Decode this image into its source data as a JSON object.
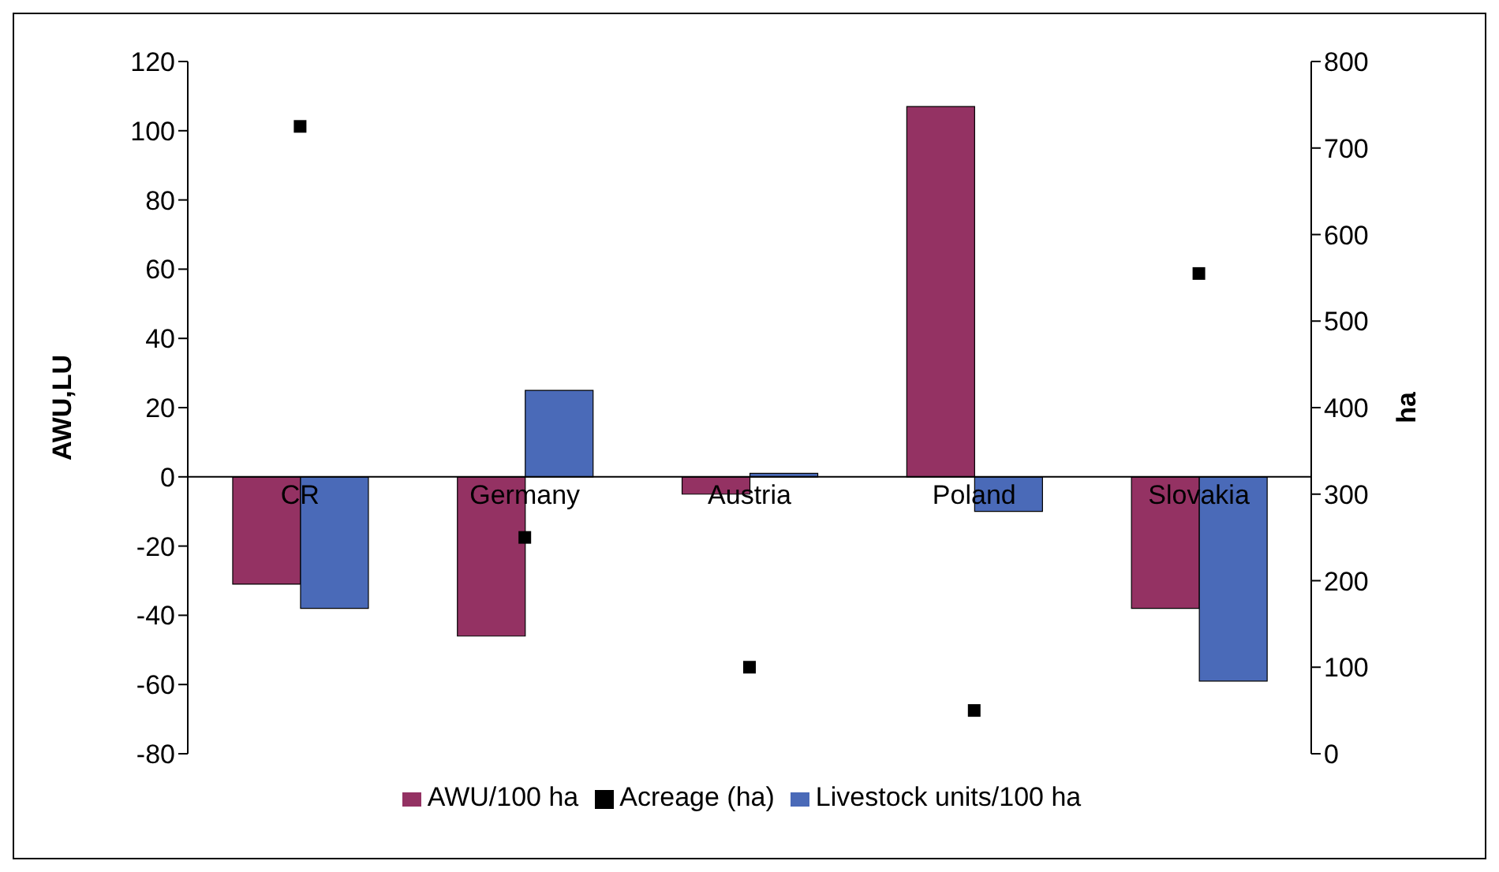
{
  "chart_data": {
    "type": "bar",
    "categories": [
      "CR",
      "Germany",
      "Austria",
      "Poland",
      "Slovakia"
    ],
    "series": [
      {
        "name": "AWU/100 ha",
        "color": "#943263",
        "values": [
          -31,
          -46,
          -5,
          107,
          -38
        ]
      },
      {
        "name": "Livestock units/100 ha",
        "color": "#4a6ab8",
        "values": [
          -38,
          25,
          1,
          -10,
          -59
        ]
      },
      {
        "name": "Acreage (ha)",
        "type": "scatter",
        "axis": "y2",
        "color": "#000000",
        "values": [
          725,
          250,
          100,
          50,
          555
        ]
      }
    ],
    "ylabel": "AWU,LU",
    "y2label": "ha",
    "ylim": [
      -80,
      120
    ],
    "yticks": [
      -80,
      -60,
      -40,
      -20,
      0,
      20,
      40,
      60,
      80,
      100,
      120
    ],
    "y2lim": [
      0,
      800
    ],
    "y2ticks": [
      0,
      100,
      200,
      300,
      400,
      500,
      600,
      700,
      800
    ],
    "legend": "bottom",
    "marker": "square",
    "grid": false
  }
}
